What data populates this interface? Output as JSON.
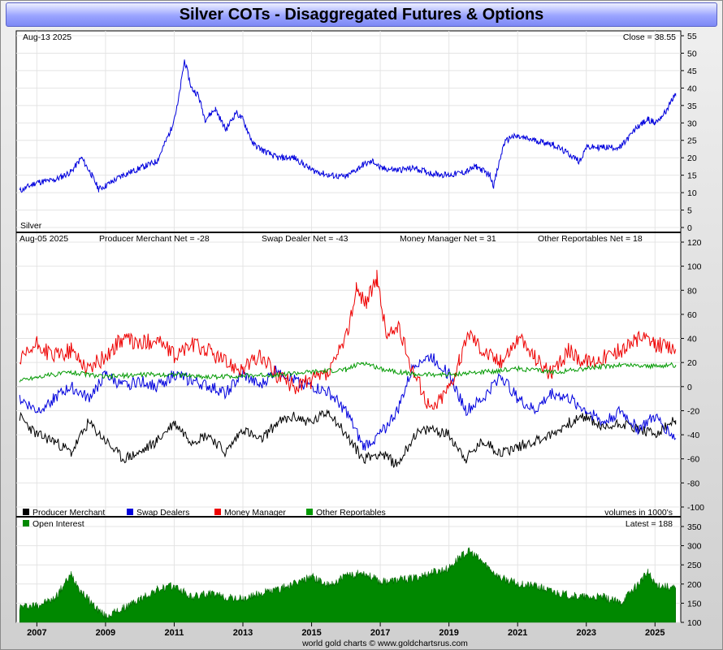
{
  "title": "Silver COTs - Disaggregated Futures & Options",
  "footer": "world gold charts © www.goldchartsrus.com",
  "x_ticks": [
    "2007",
    "2009",
    "2011",
    "2013",
    "2015",
    "2017",
    "2019",
    "2021",
    "2023",
    "2025"
  ],
  "chart_data": [
    {
      "type": "line",
      "panel": "price",
      "date_label": "Aug-13  2025",
      "close_label": "Close = 38.55",
      "series_label": "Silver",
      "ylim": [
        0,
        55
      ],
      "y_ticks": [
        "0",
        "5",
        "10",
        "15",
        "20",
        "25",
        "30",
        "35",
        "40",
        "45",
        "50",
        "55"
      ],
      "color": "#0000dd",
      "x": [
        2006.5,
        2007.0,
        2007.5,
        2008.0,
        2008.3,
        2008.6,
        2008.8,
        2009.0,
        2009.5,
        2010.0,
        2010.5,
        2010.9,
        2011.1,
        2011.3,
        2011.5,
        2011.7,
        2011.9,
        2012.2,
        2012.5,
        2012.8,
        2013.0,
        2013.3,
        2013.6,
        2014.0,
        2014.5,
        2015.0,
        2015.5,
        2016.0,
        2016.5,
        2016.8,
        2017.0,
        2017.5,
        2018.0,
        2018.5,
        2019.0,
        2019.5,
        2019.8,
        2020.2,
        2020.3,
        2020.6,
        2020.8,
        2021.0,
        2021.5,
        2022.0,
        2022.5,
        2022.8,
        2023.0,
        2023.5,
        2024.0,
        2024.5,
        2024.8,
        2025.0,
        2025.3,
        2025.6
      ],
      "values": [
        10.5,
        13.0,
        13.5,
        16.0,
        20.0,
        15.0,
        11.0,
        12.0,
        15.0,
        17.0,
        19.0,
        28.0,
        35.0,
        48.0,
        40.0,
        38.0,
        31.0,
        34.0,
        28.0,
        33.0,
        31.0,
        24.0,
        22.0,
        20.0,
        20.0,
        16.5,
        15.0,
        14.5,
        18.0,
        19.0,
        17.0,
        16.5,
        17.0,
        15.5,
        15.0,
        16.0,
        17.5,
        15.0,
        12.0,
        24.0,
        26.0,
        26.0,
        25.0,
        24.0,
        21.0,
        19.0,
        23.0,
        23.0,
        23.0,
        29.0,
        31.0,
        30.0,
        33.0,
        38.5
      ]
    },
    {
      "type": "line",
      "panel": "net_positions",
      "date_label": "Aug-05  2025",
      "ylim": [
        -100,
        120
      ],
      "y_ticks": [
        "-100",
        "-80",
        "-60",
        "-40",
        "-20",
        "0",
        "20",
        "40",
        "60",
        "80",
        "100",
        "120"
      ],
      "net_labels": [
        "Producer Merchant Net = -28",
        "Swap Dealer Net = -43",
        "Money Manager Net = 31",
        "Other Reportables Net = 18"
      ],
      "series": [
        {
          "name": "Producer Merchant",
          "color": "#000000",
          "x": [
            2006.5,
            2007.0,
            2007.5,
            2008.0,
            2008.5,
            2009.0,
            2009.5,
            2010.0,
            2010.5,
            2011.0,
            2011.5,
            2012.0,
            2012.5,
            2013.0,
            2013.5,
            2014.0,
            2014.5,
            2015.0,
            2015.5,
            2016.0,
            2016.5,
            2017.0,
            2017.5,
            2018.0,
            2018.5,
            2019.0,
            2019.5,
            2020.0,
            2020.5,
            2021.0,
            2021.5,
            2022.0,
            2022.5,
            2023.0,
            2023.5,
            2024.0,
            2024.5,
            2025.0,
            2025.6
          ],
          "values": [
            -25,
            -40,
            -45,
            -55,
            -30,
            -45,
            -60,
            -55,
            -45,
            -30,
            -45,
            -40,
            -55,
            -35,
            -45,
            -30,
            -25,
            -30,
            -20,
            -40,
            -60,
            -55,
            -65,
            -40,
            -35,
            -40,
            -60,
            -45,
            -55,
            -50,
            -45,
            -40,
            -30,
            -25,
            -35,
            -30,
            -35,
            -40,
            -28
          ]
        },
        {
          "name": "Swap Dealers",
          "color": "#0000dd",
          "x": [
            2006.5,
            2007.0,
            2007.5,
            2008.0,
            2008.5,
            2009.0,
            2009.5,
            2010.0,
            2010.5,
            2011.0,
            2011.5,
            2012.0,
            2012.5,
            2013.0,
            2013.5,
            2014.0,
            2014.5,
            2015.0,
            2015.5,
            2016.0,
            2016.5,
            2017.0,
            2017.5,
            2018.0,
            2018.5,
            2019.0,
            2019.5,
            2020.0,
            2020.5,
            2021.0,
            2021.5,
            2022.0,
            2022.5,
            2023.0,
            2023.5,
            2024.0,
            2024.5,
            2025.0,
            2025.6
          ],
          "values": [
            -10,
            -20,
            -10,
            0,
            -10,
            10,
            0,
            5,
            0,
            10,
            5,
            0,
            -5,
            10,
            0,
            15,
            5,
            0,
            -5,
            -20,
            -50,
            -40,
            -20,
            20,
            25,
            10,
            -20,
            -10,
            10,
            -10,
            -20,
            -5,
            -10,
            -20,
            -30,
            -20,
            -35,
            -25,
            -43
          ]
        },
        {
          "name": "Money Manager",
          "color": "#ee0000",
          "x": [
            2006.5,
            2007.0,
            2007.5,
            2008.0,
            2008.5,
            2009.0,
            2009.5,
            2010.0,
            2010.5,
            2011.0,
            2011.5,
            2012.0,
            2012.5,
            2013.0,
            2013.5,
            2014.0,
            2014.5,
            2015.0,
            2015.5,
            2016.0,
            2016.3,
            2016.6,
            2016.9,
            2017.2,
            2017.5,
            2018.0,
            2018.5,
            2019.0,
            2019.3,
            2019.6,
            2020.0,
            2020.5,
            2021.0,
            2021.5,
            2022.0,
            2022.5,
            2023.0,
            2023.5,
            2024.0,
            2024.5,
            2025.0,
            2025.6
          ],
          "values": [
            20,
            35,
            25,
            30,
            15,
            25,
            40,
            35,
            40,
            25,
            35,
            30,
            20,
            15,
            25,
            10,
            0,
            5,
            10,
            40,
            80,
            70,
            90,
            40,
            50,
            10,
            -20,
            0,
            20,
            45,
            30,
            20,
            40,
            25,
            10,
            30,
            20,
            25,
            30,
            40,
            35,
            31
          ]
        },
        {
          "name": "Other Reportables",
          "color": "#009900",
          "x": [
            2006.5,
            2007.0,
            2008.0,
            2009.0,
            2010.0,
            2011.0,
            2012.0,
            2013.0,
            2014.0,
            2015.0,
            2016.0,
            2016.5,
            2017.0,
            2018.0,
            2019.0,
            2020.0,
            2021.0,
            2022.0,
            2023.0,
            2024.0,
            2025.0,
            2025.6
          ],
          "values": [
            5,
            8,
            12,
            8,
            10,
            10,
            8,
            9,
            10,
            12,
            14,
            20,
            15,
            10,
            10,
            12,
            15,
            12,
            15,
            18,
            17,
            18
          ]
        }
      ]
    },
    {
      "type": "area",
      "panel": "open_interest",
      "series_label": "Open Interest",
      "volumes_label": "volumes in 1000's",
      "latest_label": "Latest = 188",
      "ylim": [
        100,
        350
      ],
      "y_ticks": [
        "100",
        "150",
        "200",
        "250",
        "300",
        "350"
      ],
      "color": "#008800",
      "x": [
        2006.5,
        2007.0,
        2007.5,
        2008.0,
        2008.3,
        2008.7,
        2009.0,
        2009.5,
        2010.0,
        2010.5,
        2011.0,
        2011.5,
        2012.0,
        2012.5,
        2013.0,
        2013.5,
        2014.0,
        2014.5,
        2015.0,
        2015.5,
        2016.0,
        2016.5,
        2017.0,
        2017.5,
        2018.0,
        2018.5,
        2019.0,
        2019.3,
        2019.6,
        2020.0,
        2020.5,
        2021.0,
        2021.5,
        2022.0,
        2022.5,
        2023.0,
        2023.5,
        2024.0,
        2024.5,
        2024.8,
        2025.0,
        2025.6
      ],
      "values": [
        140,
        145,
        160,
        225,
        180,
        140,
        115,
        135,
        160,
        185,
        195,
        165,
        175,
        165,
        160,
        175,
        185,
        200,
        220,
        195,
        220,
        230,
        205,
        210,
        215,
        230,
        240,
        270,
        285,
        255,
        215,
        200,
        195,
        180,
        170,
        165,
        165,
        150,
        200,
        230,
        200,
        188
      ]
    }
  ]
}
